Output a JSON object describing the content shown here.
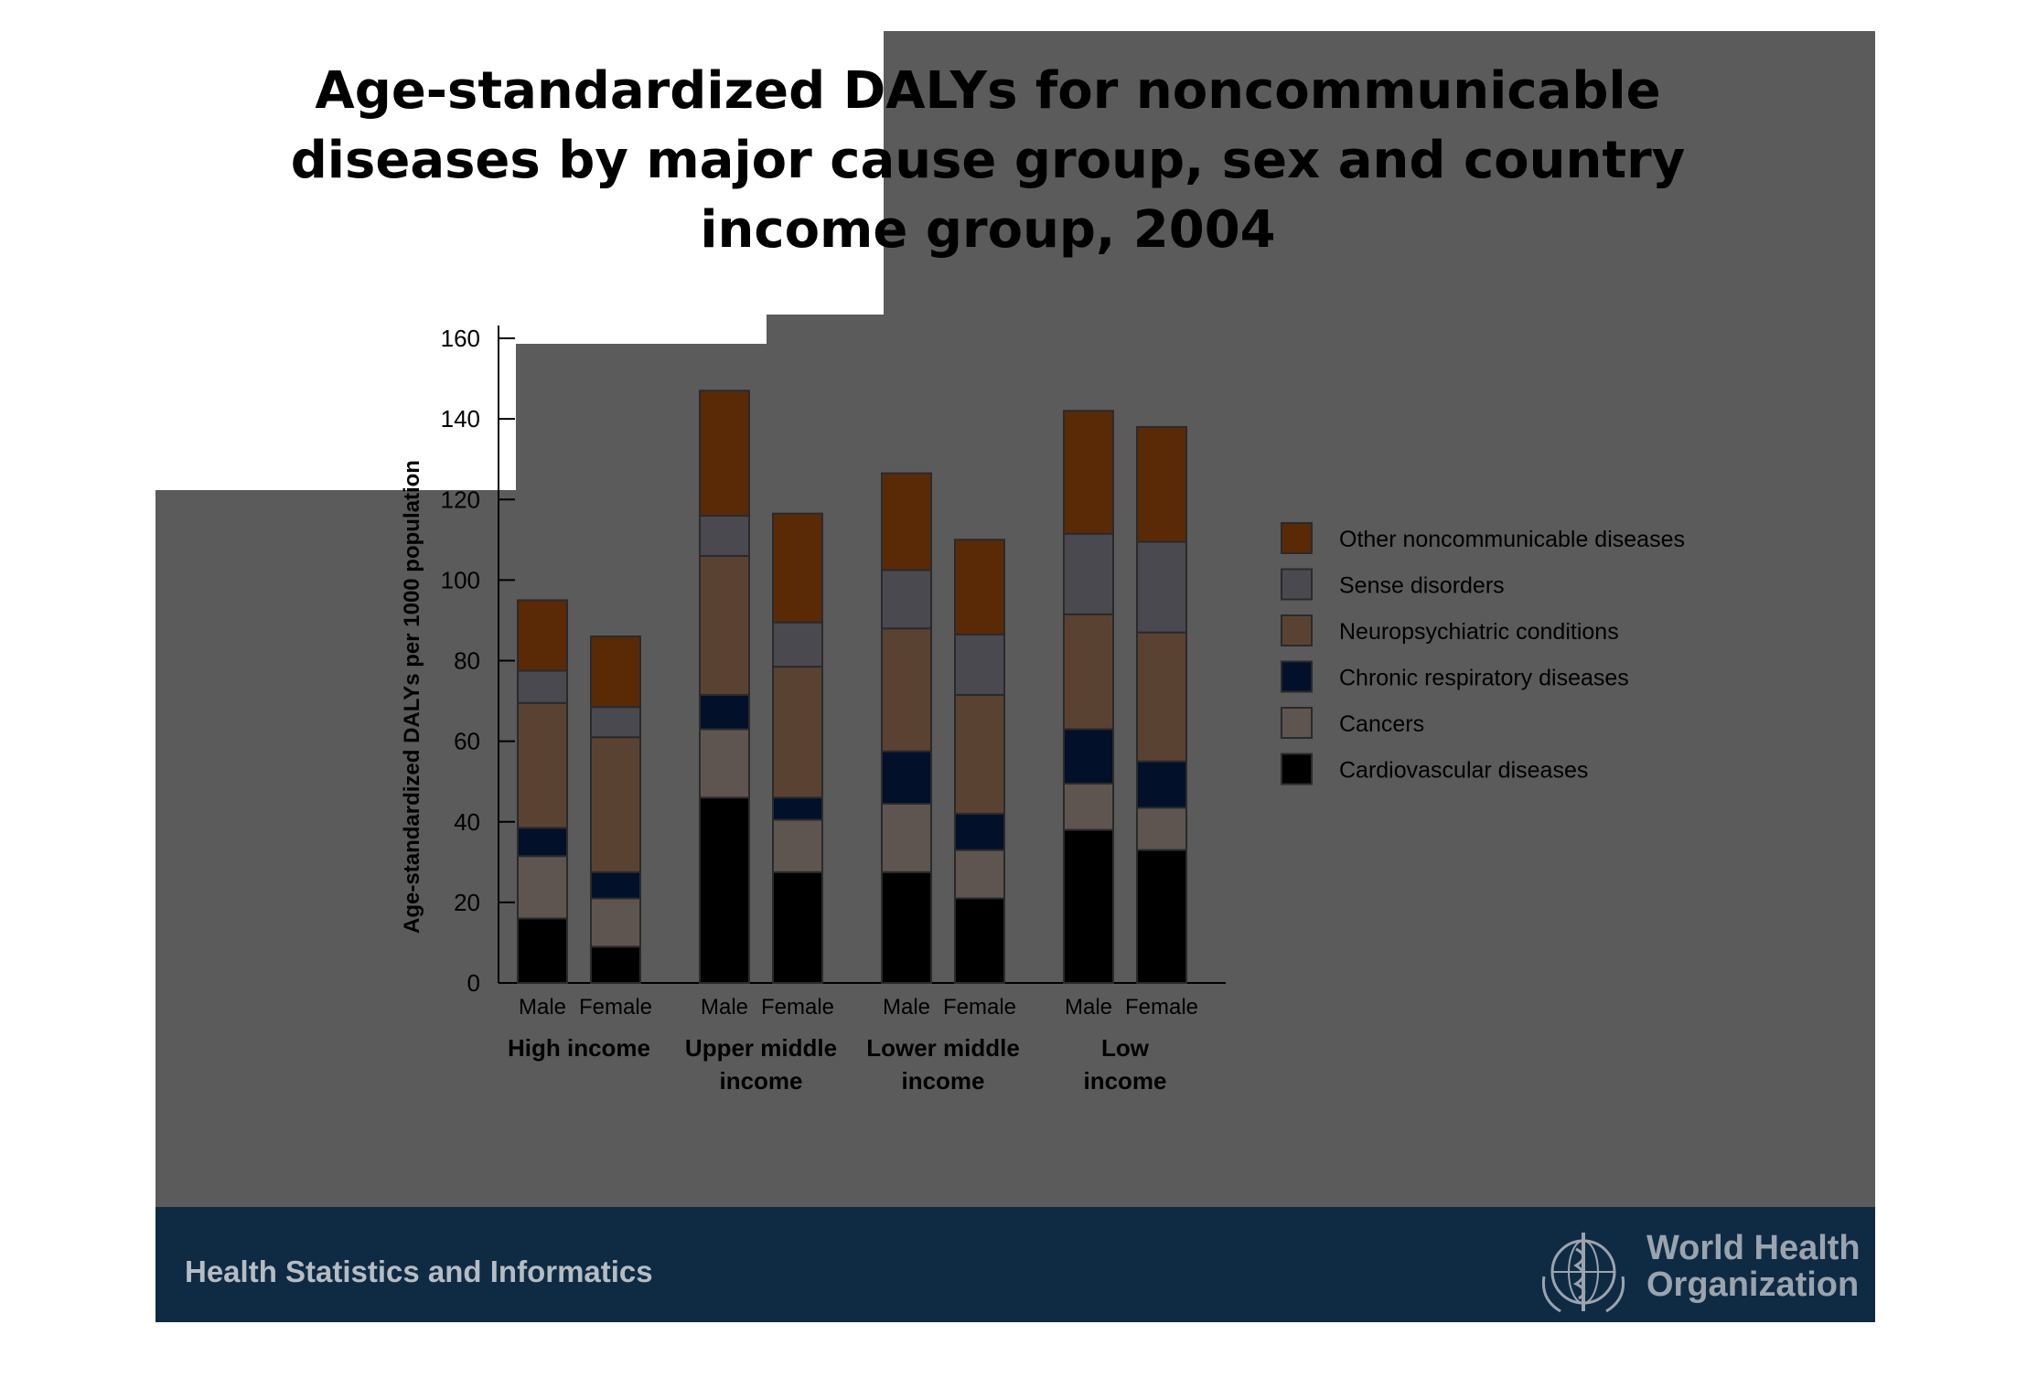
{
  "slide": {
    "title": "Age-standardized DALYs for noncommunicable diseases by major cause group,  sex and country income group, 2004",
    "footer_label": "Health Statistics and Informatics",
    "org_name": "World Health Organization",
    "colors": {
      "panel": "#5b5b5b",
      "footer_band": "#0f2b44"
    }
  },
  "chart_data": {
    "type": "bar",
    "stacked": true,
    "title": "",
    "xlabel": "",
    "ylabel": "Age-standardized DALYs per 1000 population",
    "ylim": [
      0,
      160
    ],
    "yticks": [
      0,
      20,
      40,
      60,
      80,
      100,
      120,
      140,
      160
    ],
    "groups": [
      {
        "label": "High income",
        "categories": [
          "Male",
          "Female"
        ]
      },
      {
        "label": "Upper middle income",
        "categories": [
          "Male",
          "Female"
        ]
      },
      {
        "label": "Lower middle income",
        "categories": [
          "Male",
          "Female"
        ]
      },
      {
        "label": "Low income",
        "categories": [
          "Male",
          "Female"
        ]
      }
    ],
    "categories": [
      "Male",
      "Female",
      "Male",
      "Female",
      "Male",
      "Female",
      "Male",
      "Female"
    ],
    "series": [
      {
        "name": "Cardiovascular diseases",
        "color": "#000000",
        "values": [
          16,
          9,
          46,
          27.5,
          27.5,
          21,
          38,
          33
        ]
      },
      {
        "name": "Cancers",
        "color": "#5e5550",
        "values": [
          15.5,
          12,
          17,
          13,
          17,
          12,
          11.5,
          10.5
        ]
      },
      {
        "name": "Chronic respiratory diseases",
        "color": "#02102a",
        "values": [
          7,
          6.5,
          8.5,
          5.5,
          13,
          9,
          13.5,
          11.5
        ]
      },
      {
        "name": "Neuropsychiatric conditions",
        "color": "#5a4232",
        "values": [
          31,
          33.5,
          34.5,
          32.5,
          30.5,
          29.5,
          28.5,
          32
        ]
      },
      {
        "name": "Sense disorders",
        "color": "#4a4950",
        "values": [
          8,
          7.5,
          10,
          11,
          14.5,
          15,
          20,
          22.5
        ]
      },
      {
        "name": "Other noncommunicable diseases",
        "color": "#5a2a07",
        "values": [
          17.5,
          17.5,
          31,
          27,
          24,
          23.5,
          30.5,
          28.5
        ]
      }
    ],
    "legend_position": "right"
  }
}
